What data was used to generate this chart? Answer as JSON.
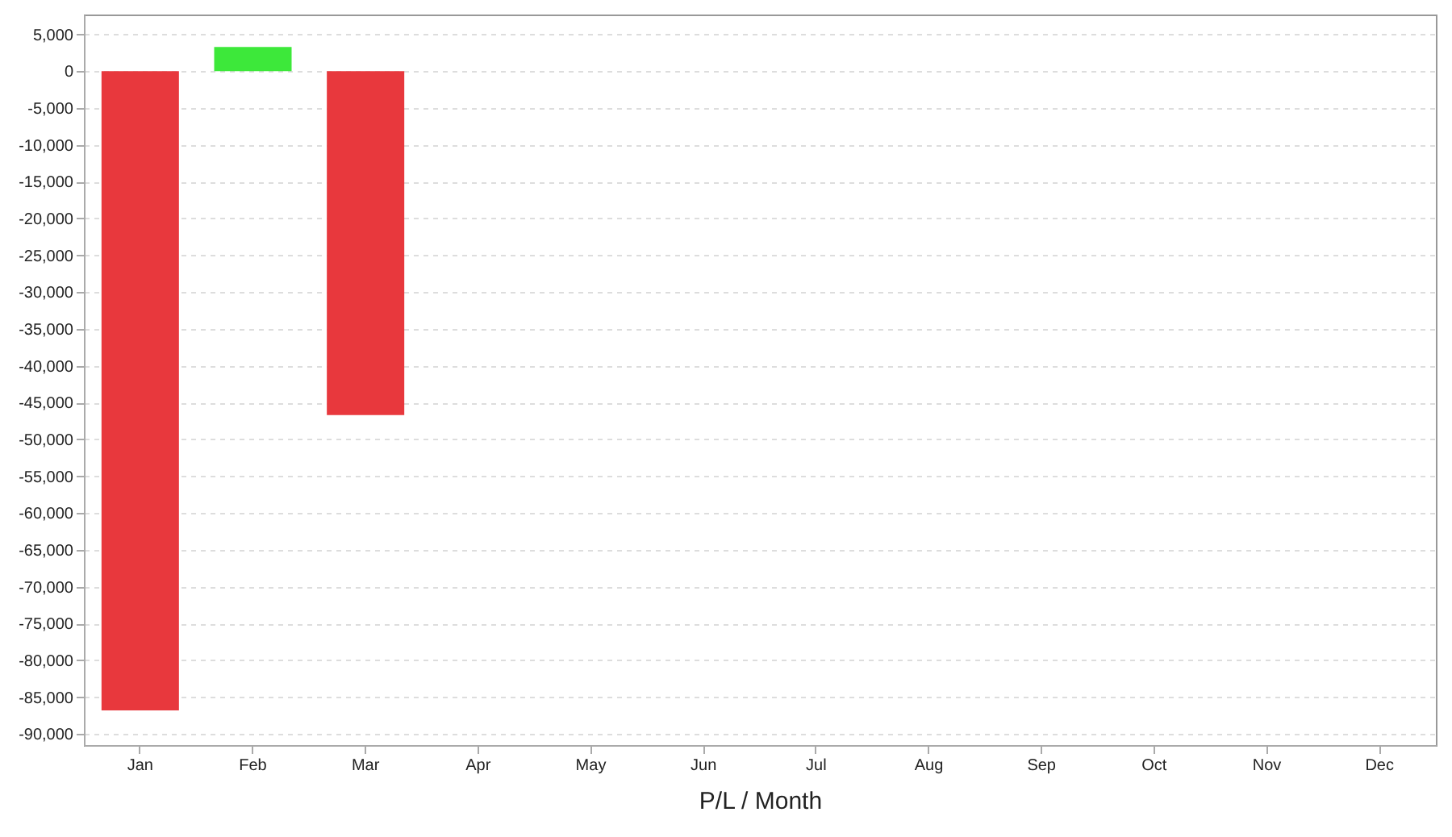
{
  "chart_data": {
    "type": "bar",
    "xlabel": "P/L / Month",
    "categories": [
      "Jan",
      "Feb",
      "Mar",
      "Apr",
      "May",
      "Jun",
      "Jul",
      "Aug",
      "Sep",
      "Oct",
      "Nov",
      "Dec"
    ],
    "values": [
      -86800,
      3300,
      -46700,
      null,
      null,
      null,
      null,
      null,
      null,
      null,
      null,
      null
    ],
    "colors": [
      "#e8383d",
      "#3de83a",
      "#e8383d",
      "#e8383d",
      "#e8383d",
      "#e8383d",
      "#e8383d",
      "#e8383d",
      "#e8383d",
      "#e8383d",
      "#e8383d",
      "#e8383d"
    ],
    "ylim": [
      -91500,
      7700
    ],
    "yticks": [
      {
        "value": -90000,
        "label": "-90,000"
      },
      {
        "value": -85000,
        "label": "-85,000"
      },
      {
        "value": -80000,
        "label": "-80,000"
      },
      {
        "value": -75000,
        "label": "-75,000"
      },
      {
        "value": -70000,
        "label": "-70,000"
      },
      {
        "value": -65000,
        "label": "-65,000"
      },
      {
        "value": -60000,
        "label": "-60,000"
      },
      {
        "value": -55000,
        "label": "-55,000"
      },
      {
        "value": -50000,
        "label": "-50,000"
      },
      {
        "value": -45000,
        "label": "-45,000"
      },
      {
        "value": -40000,
        "label": "-40,000"
      },
      {
        "value": -35000,
        "label": "-35,000"
      },
      {
        "value": -30000,
        "label": "-30,000"
      },
      {
        "value": -25000,
        "label": "-25,000"
      },
      {
        "value": -20000,
        "label": "-20,000"
      },
      {
        "value": -15000,
        "label": "-15,000"
      },
      {
        "value": -10000,
        "label": "-10,000"
      },
      {
        "value": -5000,
        "label": "-5,000"
      },
      0,
      {
        "value": 5000,
        "label": "5,000"
      }
    ],
    "grid": "y"
  }
}
